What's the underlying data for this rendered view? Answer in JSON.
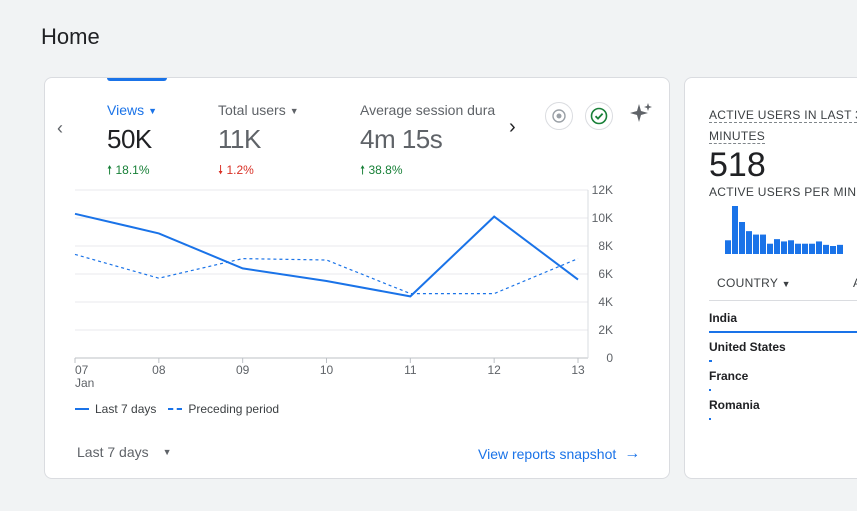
{
  "page": {
    "title": "Home"
  },
  "metrics": [
    {
      "label": "Views",
      "value": "50K",
      "change": "18.1%",
      "direction": "up",
      "arrow": "🠕"
    },
    {
      "label": "Total users",
      "value": "11K",
      "change": "1.2%",
      "direction": "down",
      "arrow": "🠗"
    },
    {
      "label": "Average session dura",
      "value": "4m 15s",
      "change": "38.8%",
      "direction": "up",
      "arrow": "🠕"
    }
  ],
  "icons": {
    "prev": "‹",
    "next": "›",
    "caret": "▼",
    "arrow_right": "→"
  },
  "chart_data": {
    "type": "line",
    "x": [
      "07",
      "08",
      "09",
      "10",
      "11",
      "12",
      "13"
    ],
    "x_sublabel": "Jan",
    "y_ticks": [
      "12K",
      "10K",
      "8K",
      "6K",
      "4K",
      "2K",
      "0"
    ],
    "ylim": [
      0,
      12000
    ],
    "series": [
      {
        "name": "Last 7 days",
        "style": "solid",
        "color": "#1a73e8",
        "values": [
          10300,
          8900,
          6400,
          5500,
          4400,
          10100,
          5600
        ]
      },
      {
        "name": "Preceding period",
        "style": "dashed",
        "color": "#1a73e8",
        "values": [
          7400,
          5700,
          7100,
          7000,
          4600,
          4600,
          7100
        ]
      }
    ]
  },
  "date_range": {
    "label": "Last 7 days"
  },
  "view_link": {
    "label": "View reports snapshot"
  },
  "realtime": {
    "title_line1": "ACTIVE USERS IN LAST 3",
    "title_line2": "MINUTES",
    "value": "518",
    "sub_label": "ACTIVE USERS PER MINU",
    "bars": [
      12,
      42,
      28,
      20,
      17,
      17,
      9,
      13,
      11,
      12,
      9,
      9,
      9,
      11,
      8,
      7,
      8
    ],
    "column_header": "COUNTRY",
    "column_header2": "A",
    "rows": [
      {
        "country": "India",
        "share": 1.0
      },
      {
        "country": "United States",
        "share": 0.02
      },
      {
        "country": "France",
        "share": 0.01
      },
      {
        "country": "Romania",
        "share": 0.01
      }
    ]
  }
}
